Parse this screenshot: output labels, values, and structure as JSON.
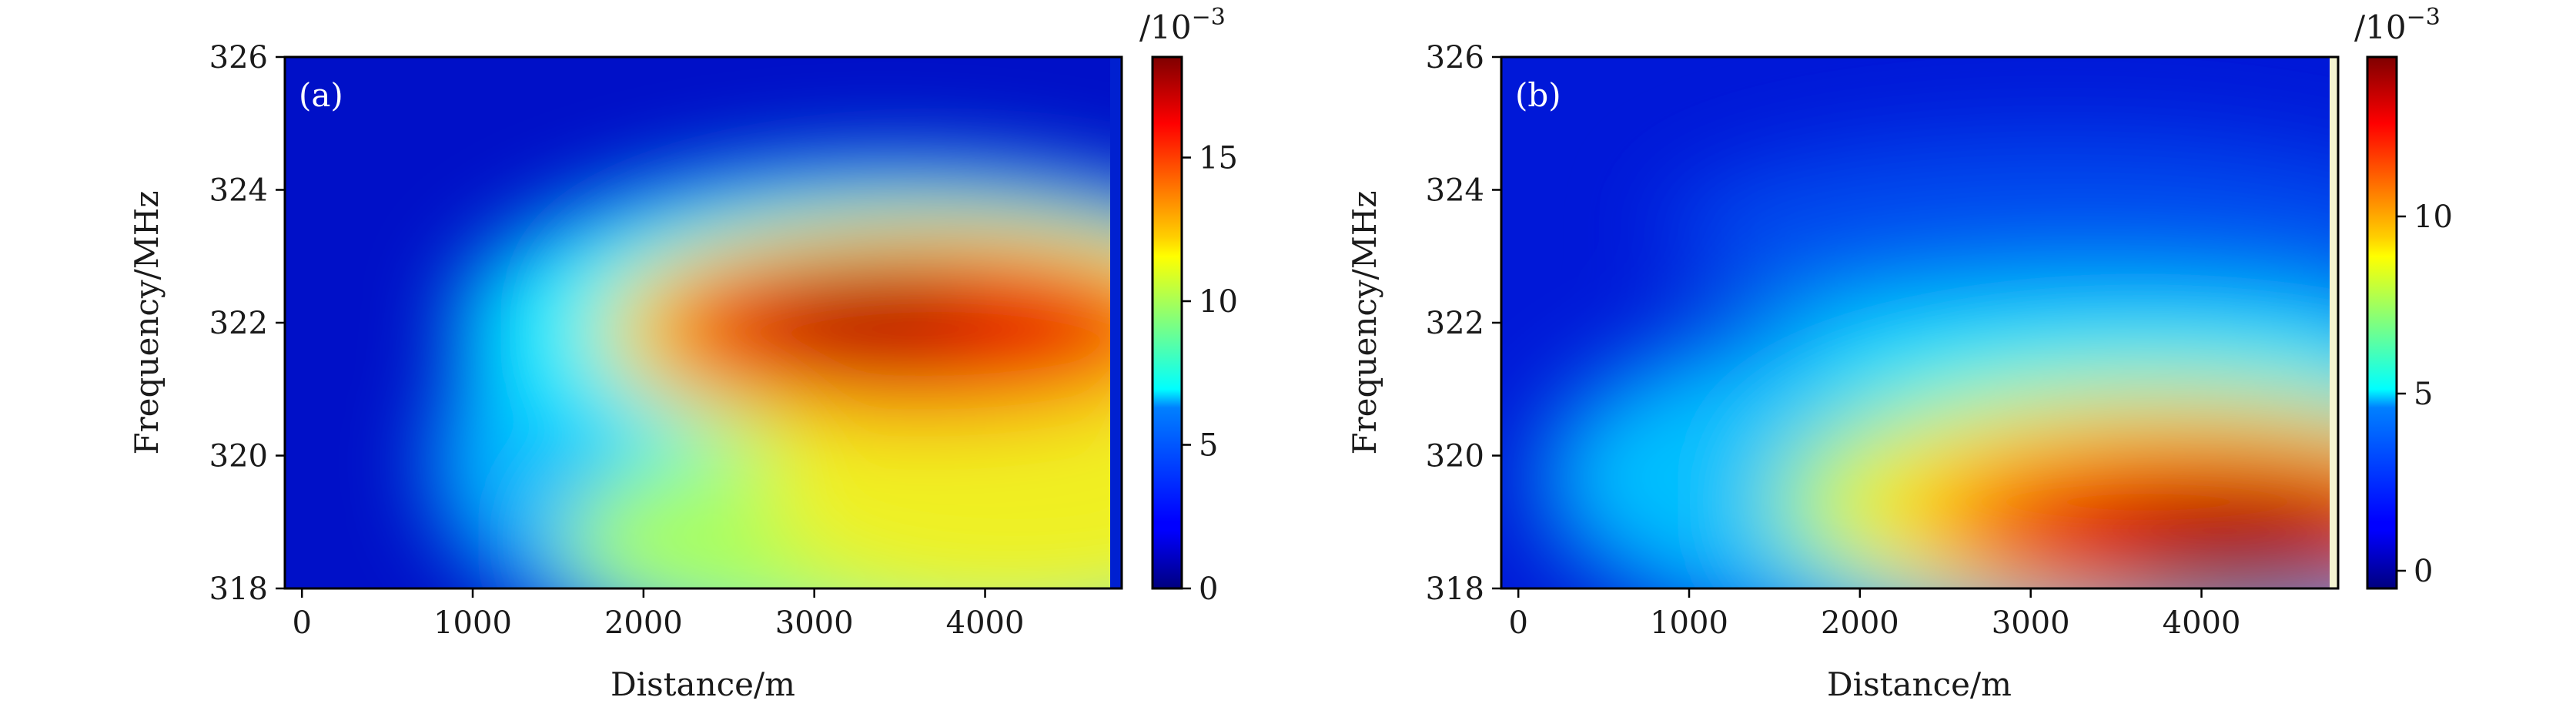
{
  "chart_data": [
    {
      "type": "heatmap",
      "panel_label": "(a)",
      "xlabel": "Distance/m",
      "ylabel": "Frequency/MHz",
      "xlim": [
        -100,
        4800
      ],
      "ylim": [
        318,
        326
      ],
      "xticks": [
        0,
        1000,
        2000,
        3000,
        4000
      ],
      "yticks": [
        318,
        320,
        322,
        324,
        326
      ],
      "colorbar": {
        "label": "/10",
        "label_exponent": "−3",
        "range": [
          0,
          18.5
        ],
        "ticks": [
          0,
          5,
          10,
          15
        ],
        "colormap": "jet"
      },
      "peak": {
        "distance": 3300,
        "frequency": 322.0,
        "value": 18
      },
      "notes": "Hot region centred near 322 MHz for distances 2000–4700 m; high values also along 318–320 MHz at large distance."
    },
    {
      "type": "heatmap",
      "panel_label": "(b)",
      "xlabel": "Distance/m",
      "ylabel": "Frequency/MHz",
      "xlim": [
        -100,
        4800
      ],
      "ylim": [
        318,
        326
      ],
      "xticks": [
        0,
        1000,
        2000,
        3000,
        4000
      ],
      "yticks": [
        318,
        320,
        322,
        324,
        326
      ],
      "colorbar": {
        "label": "/10",
        "label_exponent": "−3",
        "range": [
          -0.5,
          14.5
        ],
        "ticks": [
          0,
          5,
          10
        ],
        "colormap": "jet"
      },
      "peak": {
        "distance": 3800,
        "frequency": 318.7,
        "value": 14
      },
      "notes": "Hot region at 318–321 MHz for distances above ~2000 m; low values at 322–326 MHz."
    }
  ]
}
